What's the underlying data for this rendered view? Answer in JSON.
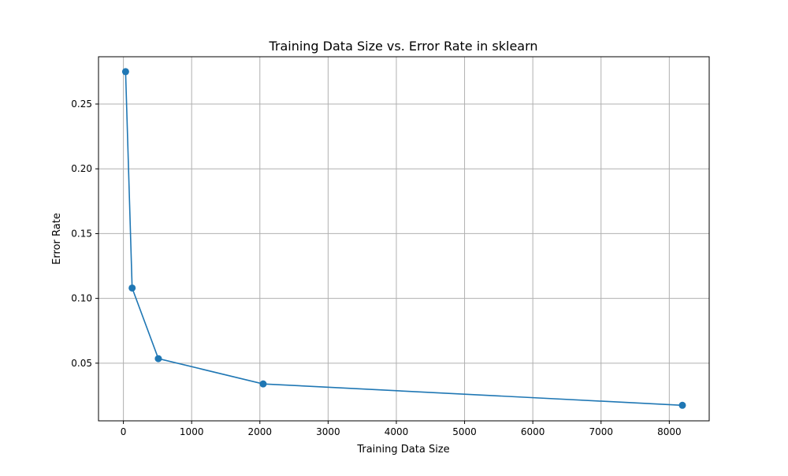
{
  "chart_data": {
    "type": "line",
    "title": "Training Data Size vs. Error Rate in sklearn",
    "xlabel": "Training Data Size",
    "ylabel": "Error Rate",
    "x": [
      32,
      128,
      512,
      2048,
      8192
    ],
    "series": [
      {
        "values": [
          0.275,
          0.108,
          0.0535,
          0.034,
          0.0175
        ],
        "color": "#1f77b4",
        "marker": "circle"
      }
    ],
    "xlim": [
      -365,
      8585
    ],
    "ylim": [
      0.0055,
      0.2865
    ],
    "xticks": [
      0,
      1000,
      2000,
      3000,
      4000,
      5000,
      6000,
      7000,
      8000
    ],
    "xtick_labels": [
      "0",
      "1000",
      "2000",
      "3000",
      "4000",
      "5000",
      "6000",
      "7000",
      "8000"
    ],
    "yticks": [
      0.05,
      0.1,
      0.15,
      0.2,
      0.25
    ],
    "ytick_labels": [
      "0.05",
      "0.10",
      "0.15",
      "0.20",
      "0.25"
    ],
    "grid": true,
    "grid_color": "#b0b0b0",
    "legend": false
  }
}
